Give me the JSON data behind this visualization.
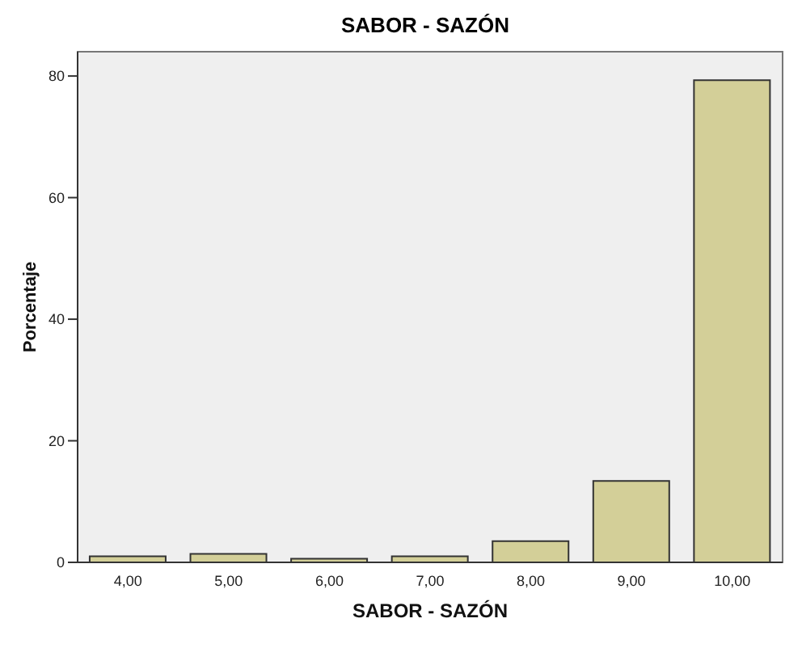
{
  "chart_data": {
    "type": "bar",
    "title": "SABOR - SAZÓN",
    "xlabel": "SABOR - SAZÓN",
    "ylabel": "Porcentaje",
    "categories": [
      "4,00",
      "5,00",
      "6,00",
      "7,00",
      "8,00",
      "9,00",
      "10,00"
    ],
    "values": [
      1.0,
      1.4,
      0.6,
      1.0,
      3.5,
      13.4,
      79.3
    ],
    "color": "#d3cf98",
    "ylim": [
      0,
      84
    ],
    "yticks": [
      0,
      20,
      40,
      60,
      80
    ]
  }
}
